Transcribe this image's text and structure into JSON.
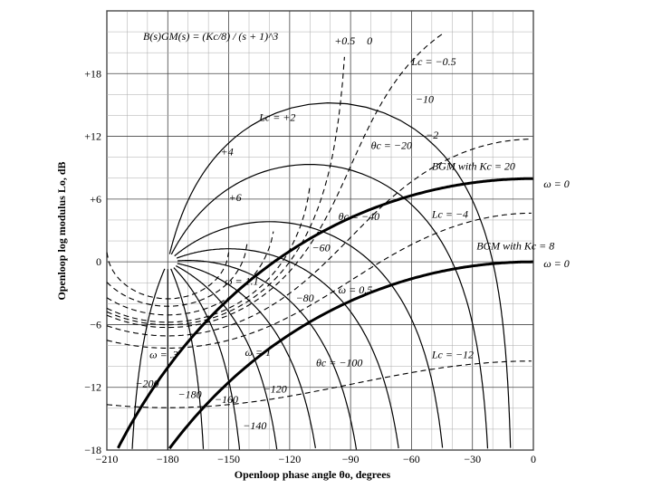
{
  "chart_data": {
    "type": "line",
    "chart_kind": "Nichols chart",
    "formula": "B(s)GM(s) = (Kc/8) / (s + 1)^3",
    "xlabel": "Openloop phase angle θo, degrees",
    "ylabel": "Openloop log modulus Lo, dB",
    "xlim": [
      -210,
      0
    ],
    "ylim": [
      -18,
      24
    ],
    "x_ticks": [
      -210,
      -180,
      -150,
      -120,
      -90,
      -60,
      -30,
      0
    ],
    "x_tick_labels": [
      "−210",
      "−180",
      "−150",
      "−120",
      "−90",
      "−60",
      "−30",
      "0"
    ],
    "y_ticks": [
      -18,
      -12,
      -6,
      0,
      6,
      12,
      18
    ],
    "y_tick_labels": [
      "−18",
      "−12",
      "−6",
      "0",
      "+6",
      "+12",
      "+18"
    ],
    "grid": true,
    "series": [
      {
        "name": "BGM with Kc = 20",
        "omega_start": "ω = 0",
        "kc": 20
      },
      {
        "name": "BGM with Kc = 8",
        "omega_start": "ω = 0",
        "kc": 8
      }
    ],
    "closed_loop_modulus_contours": [
      "+6",
      "+4",
      "+2",
      "+0.5",
      "0",
      "−0.5",
      "−2",
      "−4",
      "−12"
    ],
    "closed_loop_phase_contours": [
      "−10",
      "−20",
      "−40",
      "−60",
      "−80",
      "−100",
      "−120",
      "−140",
      "−160",
      "−180",
      "−200"
    ],
    "annotations": [
      {
        "text": "Lc = +2",
        "x": -135,
        "y": 13.5
      },
      {
        "text": "+4",
        "x": -154,
        "y": 10.2
      },
      {
        "text": "+6",
        "x": -150,
        "y": 5.8
      },
      {
        "text": "+0.5",
        "x": -98,
        "y": 20.8
      },
      {
        "text": "0",
        "x": -82,
        "y": 20.8
      },
      {
        "text": "Lc = −0.5",
        "x": -60,
        "y": 18.8
      },
      {
        "text": "−10",
        "x": -58,
        "y": 15.2
      },
      {
        "text": "θc = −20",
        "x": -80,
        "y": 10.8
      },
      {
        "text": "−2",
        "x": -53,
        "y": 11.8
      },
      {
        "text": "Lc = −4",
        "x": -50,
        "y": 4.2
      },
      {
        "text": "θc = −40",
        "x": -96,
        "y": 4.0
      },
      {
        "text": "−60",
        "x": -109,
        "y": 1.0
      },
      {
        "text": "−80",
        "x": -117,
        "y": -3.8
      },
      {
        "text": "θc = −100",
        "x": -107,
        "y": -10.0
      },
      {
        "text": "−120",
        "x": -133,
        "y": -12.5
      },
      {
        "text": "−140",
        "x": -143,
        "y": -16.0
      },
      {
        "text": "−160",
        "x": -157,
        "y": -13.5
      },
      {
        "text": "−180",
        "x": -175,
        "y": -13.0
      },
      {
        "text": "−200",
        "x": -196,
        "y": -12.0
      },
      {
        "text": "Lc = −12",
        "x": -50,
        "y": -9.2
      },
      {
        "text": "ω = 1.1",
        "x": -152,
        "y": -2.2
      },
      {
        "text": "ω = .3",
        "x": -189,
        "y": -9.2
      },
      {
        "text": "ω = 1",
        "x": -142,
        "y": -9.0
      },
      {
        "text": "ω = 0.5",
        "x": -96,
        "y": -3.0
      },
      {
        "text": "BGM  with  Kc = 20",
        "x": -50,
        "y": 8.8
      },
      {
        "text": "BGM  with  Kc = 8",
        "x": -28,
        "y": 1.2
      },
      {
        "text": "ω = 0",
        "x": 5,
        "y": 7.1
      },
      {
        "text": "ω = 0",
        "x": 5,
        "y": -0.5
      }
    ]
  }
}
